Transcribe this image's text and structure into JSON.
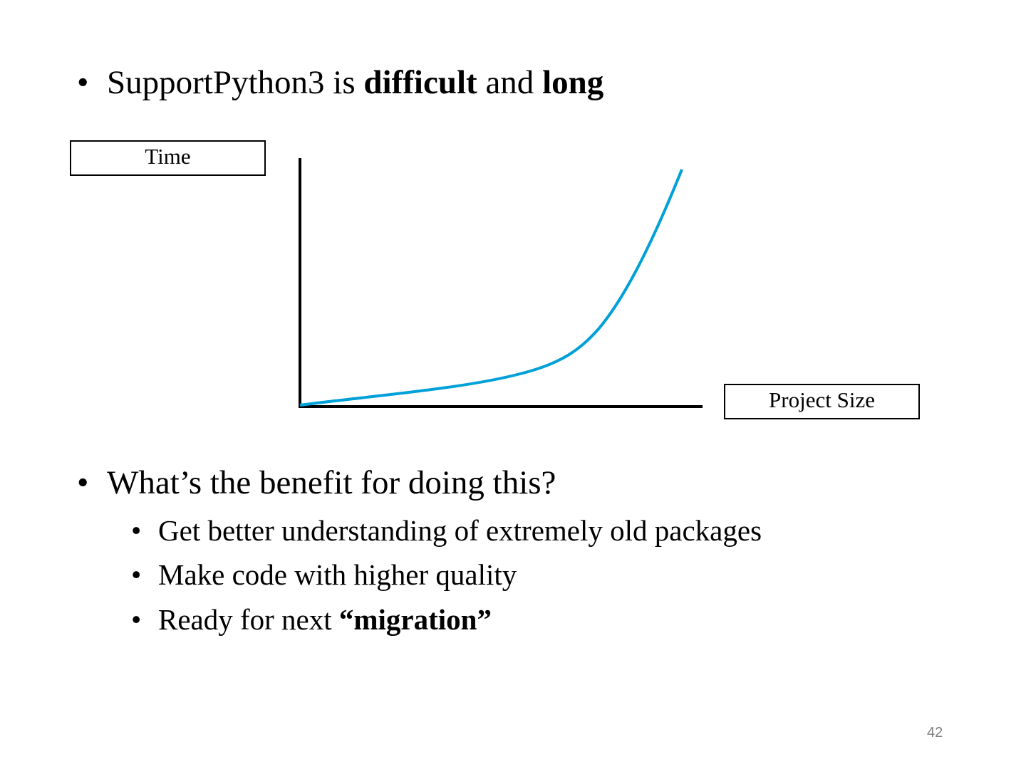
{
  "bullet_1": {
    "parts": [
      "SupportPython3 is ",
      "difficult",
      " and ",
      "long"
    ]
  },
  "figure": {
    "y_label": "Time",
    "x_label": "Project Size"
  },
  "bullet_2": {
    "text": "What’s the benefit for doing this?",
    "sub_bullets": [
      {
        "parts": [
          "Get better understanding of extremely old packages"
        ]
      },
      {
        "parts": [
          "Make code with higher quality"
        ]
      },
      {
        "parts": [
          "Ready for next ",
          "“migration”"
        ]
      }
    ]
  },
  "page_number": "42"
}
